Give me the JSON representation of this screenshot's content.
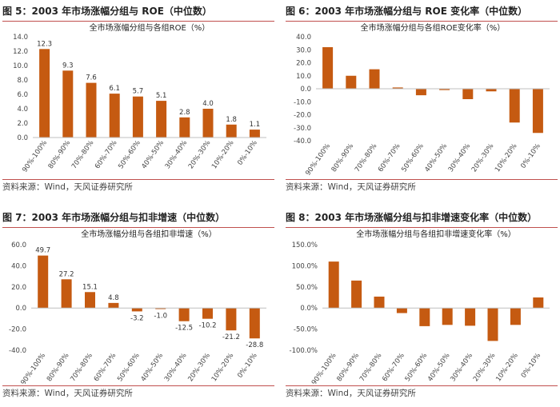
{
  "colors": {
    "bar": "#c55a11",
    "accent_line": "#c0504d"
  },
  "charts": [
    {
      "figure_title": "图 5：2003 年市场涨幅分组与 ROE（中位数）",
      "source": "资料来源：Wind，天风证券研究所"
    },
    {
      "figure_title": "图 6：2003 年市场涨幅分组与 ROE 变化率（中位数）",
      "source": "资料来源：Wind，天风证券研究所"
    },
    {
      "figure_title": "图 7：2003 年市场涨幅分组与扣非增速（中位数）",
      "source": "资料来源：Wind，天风证券研究所"
    },
    {
      "figure_title": "图 8：2003 年市场涨幅分组与扣非增速变化率（中位数）",
      "source": "资料来源：Wind，天风证券研究所"
    }
  ],
  "chart_data": [
    {
      "type": "bar",
      "title": "全市场涨幅分组与各组ROE（%）",
      "categories": [
        "90%-100%",
        "80%-90%",
        "70%-80%",
        "60%-70%",
        "50%-60%",
        "40%-50%",
        "30%-40%",
        "20%-30%",
        "10%-20%",
        "0%-10%"
      ],
      "values": [
        12.3,
        9.3,
        7.6,
        6.1,
        5.7,
        5.1,
        2.8,
        4.0,
        1.8,
        1.1
      ],
      "ylim": [
        0,
        14
      ],
      "yticks": [
        0,
        2,
        4,
        6,
        8,
        10,
        12,
        14
      ],
      "tick_labels": [
        "0.0",
        "2.0",
        "4.0",
        "6.0",
        "8.0",
        "10.0",
        "12.0",
        "14.0"
      ],
      "data_labels": [
        "12.3",
        "9.3",
        "7.6",
        "6.1",
        "5.7",
        "5.1",
        "2.8",
        "4.0",
        "1.8",
        "1.1"
      ],
      "show_data_labels": true
    },
    {
      "type": "bar",
      "title": "全市场涨幅分组与各组ROE变化率（%）",
      "categories": [
        "90%-100%",
        "80%-90%",
        "70%-80%",
        "60%-70%",
        "50%-60%",
        "40%-50%",
        "30%-40%",
        "20%-30%",
        "10%-20%",
        "0%-10%"
      ],
      "values": [
        32,
        10,
        15,
        1,
        -5,
        -1,
        -8,
        -2,
        -26,
        -34
      ],
      "ylim": [
        -40,
        40
      ],
      "yticks": [
        -40,
        -30,
        -20,
        -10,
        0,
        10,
        20,
        30,
        40
      ],
      "tick_labels": [
        "-40.0",
        "-30.0",
        "-20.0",
        "-10.0",
        "0.0",
        "10.0",
        "20.0",
        "30.0",
        "40.0"
      ],
      "show_data_labels": false
    },
    {
      "type": "bar",
      "title": "全市场涨幅分组与各组扣非增速（%）",
      "categories": [
        "90%-100%",
        "80%-90%",
        "70%-80%",
        "60%-70%",
        "50%-60%",
        "40%-50%",
        "30%-40%",
        "20%-30%",
        "10%-20%",
        "0%-10%"
      ],
      "values": [
        49.7,
        27.2,
        15.1,
        4.8,
        -3.2,
        -1.0,
        -12.5,
        -10.2,
        -21.2,
        -28.8
      ],
      "ylim": [
        -40,
        60
      ],
      "yticks": [
        -40,
        -20,
        0,
        20,
        40,
        60
      ],
      "tick_labels": [
        "-40.0",
        "-20.0",
        "0.0",
        "20.0",
        "40.0",
        "60.0"
      ],
      "data_labels": [
        "49.7",
        "27.2",
        "15.1",
        "4.8",
        "-3.2",
        "-1.0",
        "-12.5",
        "-10.2",
        "-21.2",
        "-28.8"
      ],
      "show_data_labels": true
    },
    {
      "type": "bar",
      "title": "全市场涨幅分组与各组扣非增速变化率（%）",
      "categories": [
        "90%-100%",
        "80%-90%",
        "70%-80%",
        "60%-70%",
        "50%-60%",
        "40%-50%",
        "30%-40%",
        "20%-30%",
        "10%-20%",
        "0%-10%"
      ],
      "values": [
        110,
        65,
        27,
        -12,
        -43,
        -40,
        -42,
        -78,
        -40,
        25
      ],
      "ylim": [
        -100,
        150
      ],
      "yticks": [
        -100,
        -50,
        0,
        50,
        100,
        150
      ],
      "tick_labels": [
        "-100.0%",
        "-50.0%",
        "0.0%",
        "50.0%",
        "100.0%",
        "150.0%"
      ],
      "show_data_labels": false
    }
  ]
}
